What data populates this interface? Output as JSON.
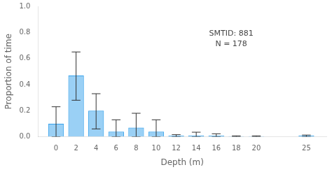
{
  "chart_data": {
    "type": "bar",
    "x": [
      0,
      2,
      4,
      6,
      8,
      10,
      12,
      14,
      16,
      18,
      20,
      25
    ],
    "values": [
      0.1,
      0.47,
      0.2,
      0.04,
      0.07,
      0.04,
      0.008,
      0.01,
      0.008,
      0.004,
      0.004,
      0.01
    ],
    "error_upper": [
      0.13,
      0.18,
      0.13,
      0.09,
      0.11,
      0.09,
      0.008,
      0.025,
      0.015,
      0.003,
      0.003,
      0.003
    ],
    "error_lower": [
      0.1,
      0.19,
      0.14,
      0.04,
      0.07,
      0.04,
      0.008,
      0.01,
      0.008,
      0.004,
      0.004,
      0.01
    ],
    "xlabel": "Depth (m)",
    "ylabel": "Proportion of time",
    "xlim": [
      -1.8,
      27.0
    ],
    "xticks": [
      0,
      2,
      4,
      6,
      8,
      10,
      12,
      14,
      16,
      18,
      20,
      25
    ],
    "ylim": [
      0.0,
      1.0
    ],
    "yticks": [
      {
        "value": 0.0,
        "label": "0.0"
      },
      0.2,
      0.4,
      0.6,
      0.8,
      {
        "value": 1.0,
        "label": "1.0"
      }
    ],
    "annotations": [
      "SMTID: 881",
      "N = 178"
    ],
    "grid": false
  }
}
